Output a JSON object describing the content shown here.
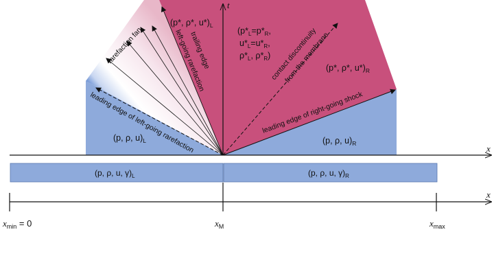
{
  "colors": {
    "left_state": "#8eaadb",
    "right_state": "#c8507c",
    "fan_start": "#e8b7c8",
    "fan_end": "#4a78c8",
    "axis": "#111111"
  },
  "axes": {
    "t_label": "t",
    "x_label_top": "x",
    "x_label_bottom": "x"
  },
  "regions": {
    "left_state_sym": "(p, ρ, u)",
    "left_state_sub": "L",
    "right_state_sym": "(p, ρ, u)",
    "right_state_sub": "R",
    "star_left_sym": "(p*, ρ*, u*)",
    "star_left_sub": "L",
    "star_right_sym": "(p*, ρ*, u*)",
    "star_right_sub": "R",
    "contact_line1": "(p*",
    "contact_line1_sub_a": "L",
    "contact_line1_mid": "=p*",
    "contact_line1_sub_b": "R",
    "contact_line1_end": ",",
    "contact_line2": "u*",
    "contact_line2_sub_a": "L",
    "contact_line2_mid": "=u*",
    "contact_line2_sub_b": "R",
    "contact_line2_end": ",",
    "contact_line3": "ρ*",
    "contact_line3_sub_a": "L",
    "contact_line3_mid": ", ρ*",
    "contact_line3_sub_b": "R",
    "contact_line3_end": ")"
  },
  "wave_labels": {
    "rarefaction_fan": "rarefaction fan",
    "trailing_edge_1": "trailing edge",
    "trailing_edge_2": "left-going rarefaction",
    "leading_edge_left": "leading edge of left-going rarefaction",
    "contact_1": "contact discontinuity",
    "contact_2": "from the membrane",
    "leading_edge_right": "leading edge of right-going shock"
  },
  "initial_states": {
    "left_sym": "(p, ρ, u, γ)",
    "left_sub": "L",
    "right_sym": "(p, ρ, u, γ)",
    "right_sub": "R"
  },
  "domain_ticks": {
    "xmin_base": "x",
    "xmin_sub": "min",
    "xmin_rest": " = 0",
    "xm_base": "x",
    "xm_sub": "M",
    "xmax_base": "x",
    "xmax_sub": "max"
  }
}
